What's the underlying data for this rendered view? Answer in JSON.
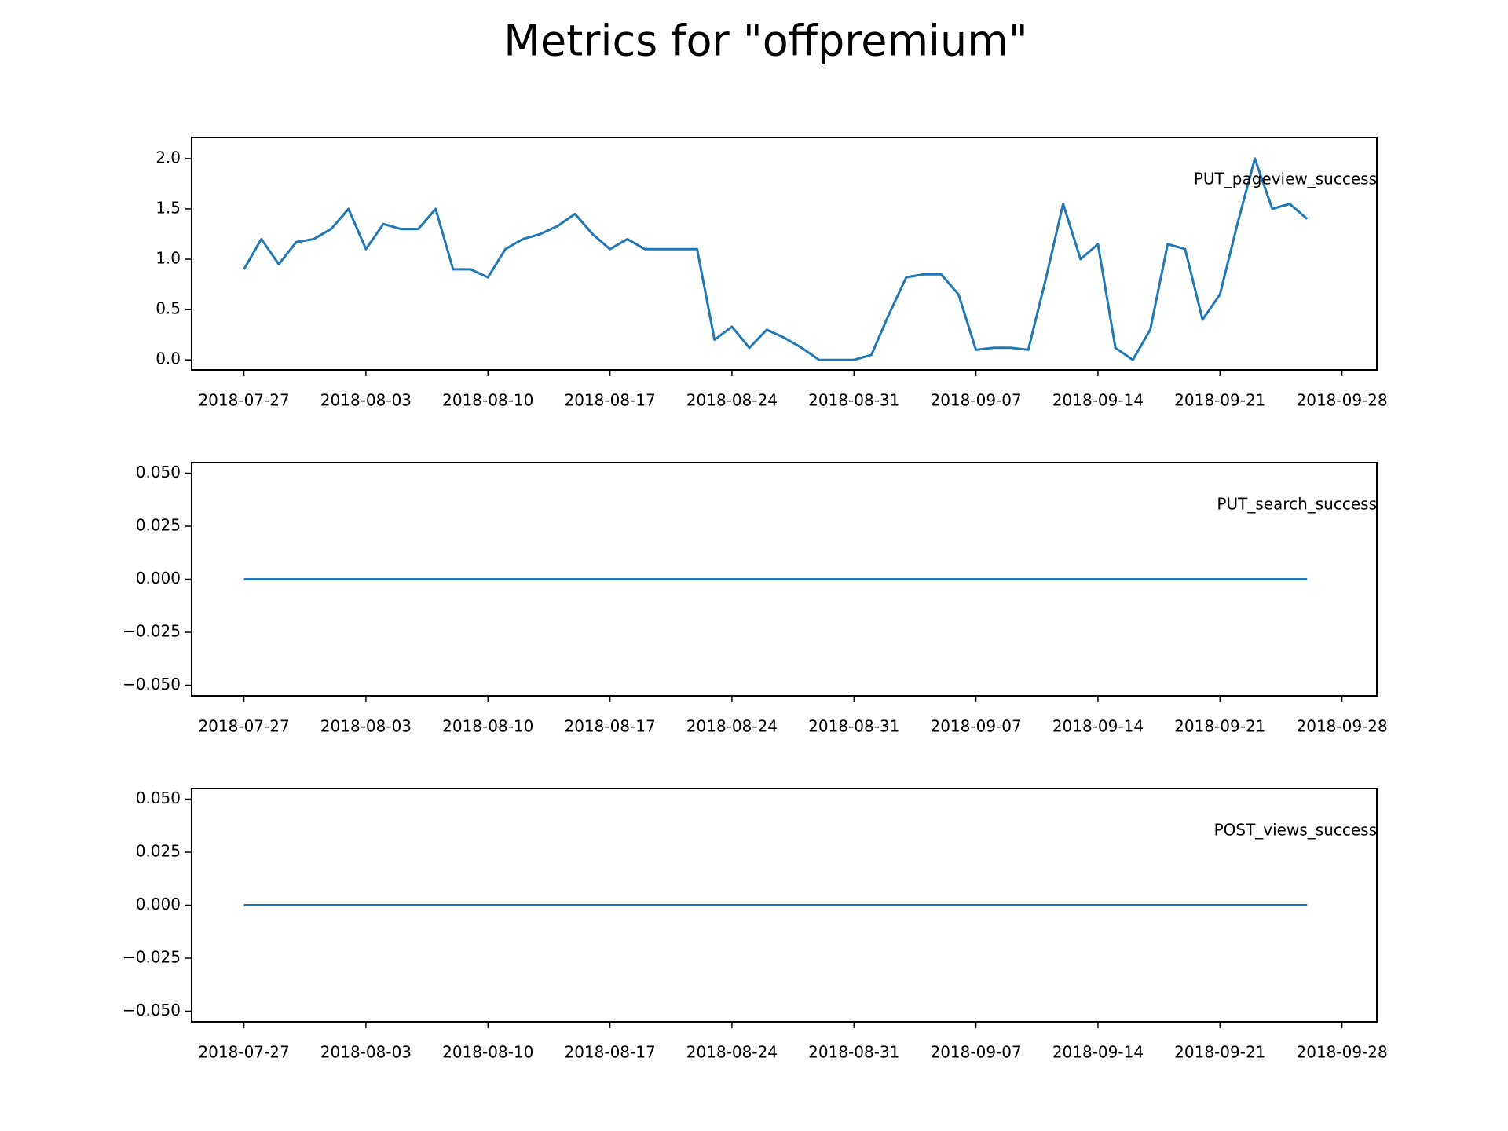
{
  "title": "Metrics for \"offpremium\"",
  "chart_data": [
    {
      "type": "line",
      "x": [
        "2018-07-27",
        "2018-07-28",
        "2018-07-29",
        "2018-07-30",
        "2018-07-31",
        "2018-08-01",
        "2018-08-02",
        "2018-08-03",
        "2018-08-04",
        "2018-08-05",
        "2018-08-06",
        "2018-08-07",
        "2018-08-08",
        "2018-08-09",
        "2018-08-10",
        "2018-08-11",
        "2018-08-12",
        "2018-08-13",
        "2018-08-14",
        "2018-08-15",
        "2018-08-16",
        "2018-08-17",
        "2018-08-18",
        "2018-08-19",
        "2018-08-20",
        "2018-08-21",
        "2018-08-22",
        "2018-08-23",
        "2018-08-24",
        "2018-08-25",
        "2018-08-26",
        "2018-08-27",
        "2018-08-28",
        "2018-08-29",
        "2018-08-30",
        "2018-08-31",
        "2018-09-01",
        "2018-09-02",
        "2018-09-03",
        "2018-09-04",
        "2018-09-05",
        "2018-09-06",
        "2018-09-07",
        "2018-09-08",
        "2018-09-09",
        "2018-09-10",
        "2018-09-11",
        "2018-09-12",
        "2018-09-13",
        "2018-09-14",
        "2018-09-15",
        "2018-09-16",
        "2018-09-17",
        "2018-09-18",
        "2018-09-19",
        "2018-09-20",
        "2018-09-21",
        "2018-09-22",
        "2018-09-23",
        "2018-09-24",
        "2018-09-25",
        "2018-09-26"
      ],
      "series": [
        {
          "name": "PUT_pageview_success",
          "color": "#1f77b4",
          "values": [
            0.9,
            1.2,
            0.95,
            1.17,
            1.2,
            1.3,
            1.5,
            1.1,
            1.35,
            1.3,
            1.3,
            1.5,
            0.9,
            0.9,
            0.82,
            1.1,
            1.2,
            1.25,
            1.33,
            1.45,
            1.25,
            1.1,
            1.2,
            1.1,
            1.1,
            1.1,
            1.1,
            0.2,
            0.33,
            0.12,
            0.3,
            0.22,
            0.12,
            0,
            0,
            0,
            0.05,
            0.45,
            0.82,
            0.85,
            0.85,
            0.65,
            0.1,
            0.12,
            0.12,
            0.1,
            0.8,
            1.55,
            1.0,
            1.15,
            0.12,
            0,
            0.3,
            1.15,
            1.1,
            0.4,
            0.65,
            1.35,
            2.0,
            1.5,
            1.55,
            1.4
          ]
        }
      ],
      "xlim": [
        "2018-07-24",
        "2018-09-30"
      ],
      "xticks": [
        "2018-07-27",
        "2018-08-03",
        "2018-08-10",
        "2018-08-17",
        "2018-08-24",
        "2018-08-31",
        "2018-09-07",
        "2018-09-14",
        "2018-09-21",
        "2018-09-28"
      ],
      "ylim": [
        -0.1,
        2.21
      ],
      "yticks": [
        {
          "value": 0,
          "label": "0.0"
        },
        0.5,
        {
          "value": 1,
          "label": "1.0"
        },
        1.5,
        {
          "value": 2,
          "label": "2.0"
        }
      ]
    },
    {
      "type": "line",
      "x": [
        "2018-07-27",
        "2018-07-28",
        "2018-07-29",
        "2018-07-30",
        "2018-07-31",
        "2018-08-01",
        "2018-08-02",
        "2018-08-03",
        "2018-08-04",
        "2018-08-05",
        "2018-08-06",
        "2018-08-07",
        "2018-08-08",
        "2018-08-09",
        "2018-08-10",
        "2018-08-11",
        "2018-08-12",
        "2018-08-13",
        "2018-08-14",
        "2018-08-15",
        "2018-08-16",
        "2018-08-17",
        "2018-08-18",
        "2018-08-19",
        "2018-08-20",
        "2018-08-21",
        "2018-08-22",
        "2018-08-23",
        "2018-08-24",
        "2018-08-25",
        "2018-08-26",
        "2018-08-27",
        "2018-08-28",
        "2018-08-29",
        "2018-08-30",
        "2018-08-31",
        "2018-09-01",
        "2018-09-02",
        "2018-09-03",
        "2018-09-04",
        "2018-09-05",
        "2018-09-06",
        "2018-09-07",
        "2018-09-08",
        "2018-09-09",
        "2018-09-10",
        "2018-09-11",
        "2018-09-12",
        "2018-09-13",
        "2018-09-14",
        "2018-09-15",
        "2018-09-16",
        "2018-09-17",
        "2018-09-18",
        "2018-09-19",
        "2018-09-20",
        "2018-09-21",
        "2018-09-22",
        "2018-09-23",
        "2018-09-24",
        "2018-09-25",
        "2018-09-26"
      ],
      "series": [
        {
          "name": "PUT_search_success",
          "color": "#1f77b4",
          "values": [
            0,
            0,
            0,
            0,
            0,
            0,
            0,
            0,
            0,
            0,
            0,
            0,
            0,
            0,
            0,
            0,
            0,
            0,
            0,
            0,
            0,
            0,
            0,
            0,
            0,
            0,
            0,
            0,
            0,
            0,
            0,
            0,
            0,
            0,
            0,
            0,
            0,
            0,
            0,
            0,
            0,
            0,
            0,
            0,
            0,
            0,
            0,
            0,
            0,
            0,
            0,
            0,
            0,
            0,
            0,
            0,
            0,
            0,
            0,
            0,
            0,
            0
          ]
        }
      ],
      "xlim": [
        "2018-07-24",
        "2018-09-30"
      ],
      "xticks": [
        "2018-07-27",
        "2018-08-03",
        "2018-08-10",
        "2018-08-17",
        "2018-08-24",
        "2018-08-31",
        "2018-09-07",
        "2018-09-14",
        "2018-09-21",
        "2018-09-28"
      ],
      "ylim": [
        -0.055,
        0.055
      ],
      "yticks": [
        {
          "value": -0.05,
          "label": "−0.050"
        },
        {
          "value": -0.025,
          "label": "−0.025"
        },
        {
          "value": 0,
          "label": "0.000"
        },
        {
          "value": 0.025,
          "label": "0.025"
        },
        {
          "value": 0.05,
          "label": "0.050"
        }
      ]
    },
    {
      "type": "line",
      "x": [
        "2018-07-27",
        "2018-07-28",
        "2018-07-29",
        "2018-07-30",
        "2018-07-31",
        "2018-08-01",
        "2018-08-02",
        "2018-08-03",
        "2018-08-04",
        "2018-08-05",
        "2018-08-06",
        "2018-08-07",
        "2018-08-08",
        "2018-08-09",
        "2018-08-10",
        "2018-08-11",
        "2018-08-12",
        "2018-08-13",
        "2018-08-14",
        "2018-08-15",
        "2018-08-16",
        "2018-08-17",
        "2018-08-18",
        "2018-08-19",
        "2018-08-20",
        "2018-08-21",
        "2018-08-22",
        "2018-08-23",
        "2018-08-24",
        "2018-08-25",
        "2018-08-26",
        "2018-08-27",
        "2018-08-28",
        "2018-08-29",
        "2018-08-30",
        "2018-08-31",
        "2018-09-01",
        "2018-09-02",
        "2018-09-03",
        "2018-09-04",
        "2018-09-05",
        "2018-09-06",
        "2018-09-07",
        "2018-09-08",
        "2018-09-09",
        "2018-09-10",
        "2018-09-11",
        "2018-09-12",
        "2018-09-13",
        "2018-09-14",
        "2018-09-15",
        "2018-09-16",
        "2018-09-17",
        "2018-09-18",
        "2018-09-19",
        "2018-09-20",
        "2018-09-21",
        "2018-09-22",
        "2018-09-23",
        "2018-09-24",
        "2018-09-25",
        "2018-09-26"
      ],
      "series": [
        {
          "name": "POST_views_success",
          "color": "#1f77b4",
          "values": [
            0,
            0,
            0,
            0,
            0,
            0,
            0,
            0,
            0,
            0,
            0,
            0,
            0,
            0,
            0,
            0,
            0,
            0,
            0,
            0,
            0,
            0,
            0,
            0,
            0,
            0,
            0,
            0,
            0,
            0,
            0,
            0,
            0,
            0,
            0,
            0,
            0,
            0,
            0,
            0,
            0,
            0,
            0,
            0,
            0,
            0,
            0,
            0,
            0,
            0,
            0,
            0,
            0,
            0,
            0,
            0,
            0,
            0,
            0,
            0,
            0,
            0
          ]
        }
      ],
      "xlim": [
        "2018-07-24",
        "2018-09-30"
      ],
      "xticks": [
        "2018-07-27",
        "2018-08-03",
        "2018-08-10",
        "2018-08-17",
        "2018-08-24",
        "2018-08-31",
        "2018-09-07",
        "2018-09-14",
        "2018-09-21",
        "2018-09-28"
      ],
      "ylim": [
        -0.055,
        0.055
      ],
      "yticks": [
        {
          "value": -0.05,
          "label": "−0.050"
        },
        {
          "value": -0.025,
          "label": "−0.025"
        },
        {
          "value": 0,
          "label": "0.000"
        },
        {
          "value": 0.025,
          "label": "0.025"
        },
        {
          "value": 0.05,
          "label": "0.050"
        }
      ]
    }
  ]
}
